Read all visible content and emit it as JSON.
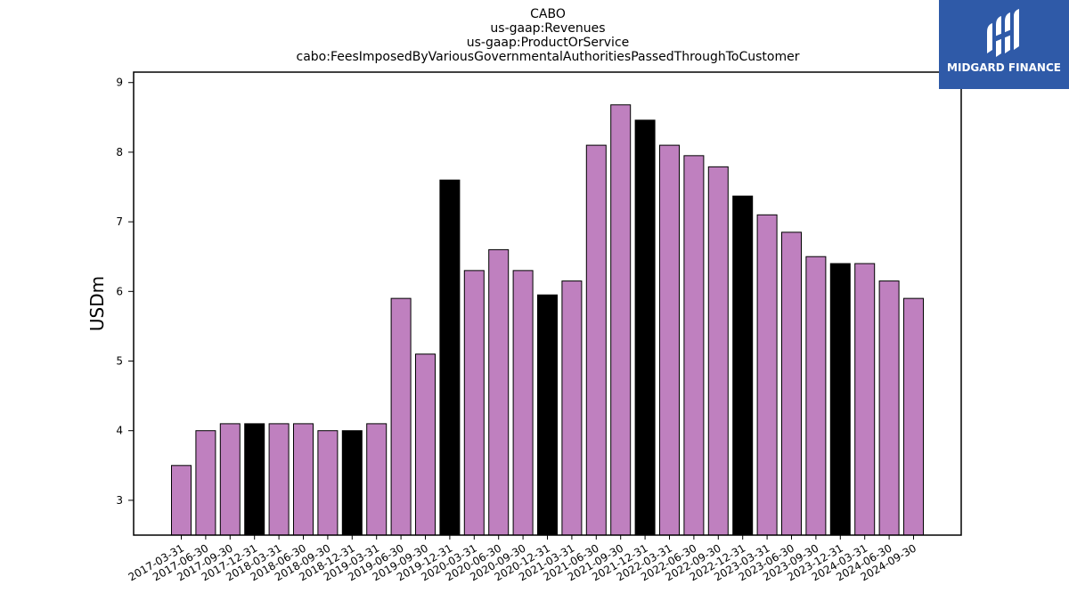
{
  "chart_data": {
    "type": "bar",
    "title_lines": [
      "CABO",
      "us-gaap:Revenues",
      "us-gaap:ProductOrService",
      "cabo:FeesImposedByVariousGovernmentalAuthoritiesPassedThroughToCustomer"
    ],
    "xlabel": "",
    "ylabel": "USDm",
    "ylim": [
      2.5,
      9.15
    ],
    "yticks": [
      3,
      4,
      5,
      6,
      7,
      8,
      9
    ],
    "categories": [
      "2017-03-31",
      "2017-06-30",
      "2017-09-30",
      "2017-12-31",
      "2018-03-31",
      "2018-06-30",
      "2018-09-30",
      "2018-12-31",
      "2019-03-31",
      "2019-06-30",
      "2019-09-30",
      "2019-12-31",
      "2020-03-31",
      "2020-06-30",
      "2020-09-30",
      "2020-12-31",
      "2021-03-31",
      "2021-06-30",
      "2021-09-30",
      "2021-12-31",
      "2022-03-31",
      "2022-06-30",
      "2022-09-30",
      "2022-12-31",
      "2023-03-31",
      "2023-06-30",
      "2023-09-30",
      "2023-12-31",
      "2024-03-31",
      "2024-06-30",
      "2024-09-30"
    ],
    "values": [
      3.5,
      4.0,
      4.1,
      4.1,
      4.1,
      4.1,
      4.0,
      4.0,
      4.1,
      5.9,
      5.1,
      7.6,
      6.3,
      6.6,
      6.3,
      5.95,
      6.15,
      8.1,
      8.68,
      8.46,
      8.1,
      7.95,
      7.79,
      7.37,
      7.1,
      6.85,
      6.5,
      6.4,
      6.4,
      6.15,
      5.9
    ],
    "bar_colors": [
      "#bf80bf",
      "#bf80bf",
      "#bf80bf",
      "#000000",
      "#bf80bf",
      "#bf80bf",
      "#bf80bf",
      "#000000",
      "#bf80bf",
      "#bf80bf",
      "#bf80bf",
      "#000000",
      "#bf80bf",
      "#bf80bf",
      "#bf80bf",
      "#000000",
      "#bf80bf",
      "#bf80bf",
      "#bf80bf",
      "#000000",
      "#bf80bf",
      "#bf80bf",
      "#bf80bf",
      "#000000",
      "#bf80bf",
      "#bf80bf",
      "#bf80bf",
      "#000000",
      "#bf80bf",
      "#bf80bf",
      "#bf80bf"
    ],
    "grid": false,
    "legend": "none"
  },
  "logo": {
    "text": "MIDGARD FINANCE",
    "background": "#2f5aa8"
  }
}
